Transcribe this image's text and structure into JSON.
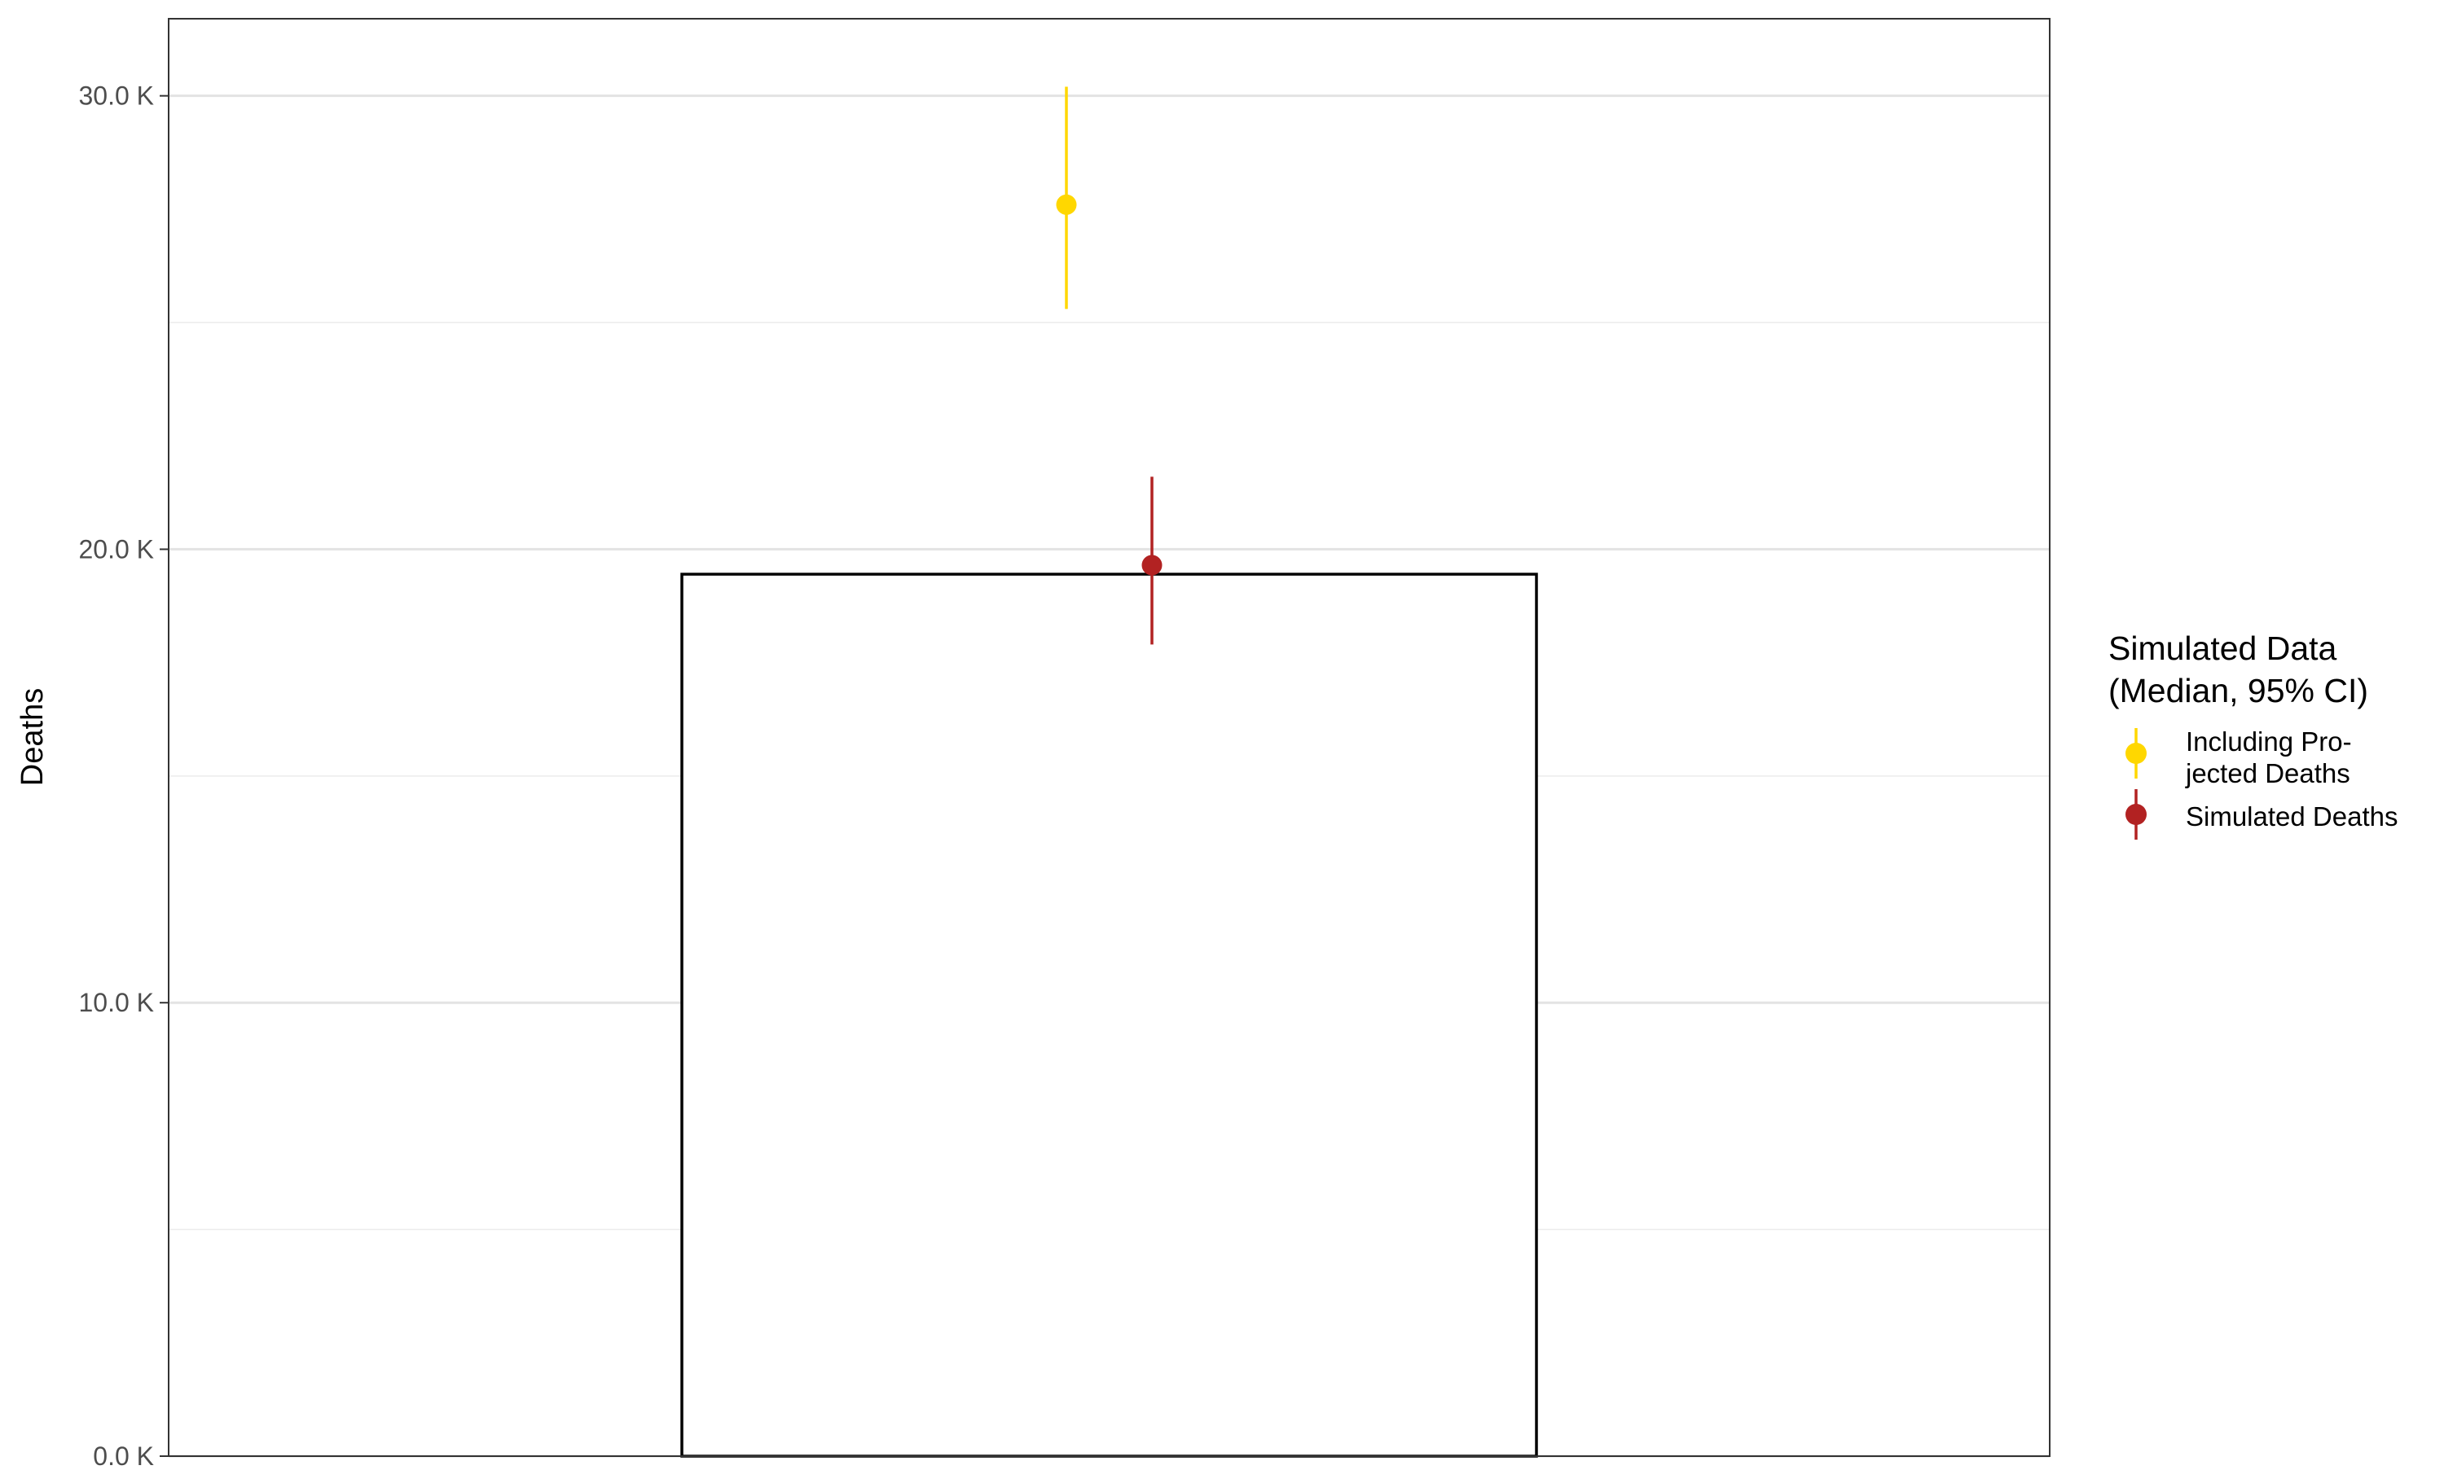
{
  "chart_data": {
    "type": "bar",
    "title": "",
    "xlabel": "",
    "ylabel": "Deaths",
    "ylim": [
      0,
      31700
    ],
    "y_ticks": [
      0,
      10000,
      20000,
      30000
    ],
    "y_tick_labels": [
      "0.0 K",
      "10.0 K",
      "20.0 K",
      "30.0 K"
    ],
    "y_minor_ticks": [
      5000,
      15000,
      25000
    ],
    "grid": true,
    "bar": {
      "value": 19450
    },
    "series": [
      {
        "name": "Including Pro-\njected Deaths",
        "median": 27600,
        "lower": 25300,
        "upper": 30200,
        "color": "#FFD700"
      },
      {
        "name": "Simulated Deaths",
        "median": 19650,
        "lower": 17900,
        "upper": 21600,
        "color": "#B22222"
      }
    ],
    "legend": {
      "title_line1": "Simulated Data",
      "title_line2": "(Median, 95% CI)",
      "item1_line1": "Including Pro-",
      "item1_line2": "jected Deaths",
      "item2": "Simulated Deaths",
      "placement": "right"
    }
  }
}
